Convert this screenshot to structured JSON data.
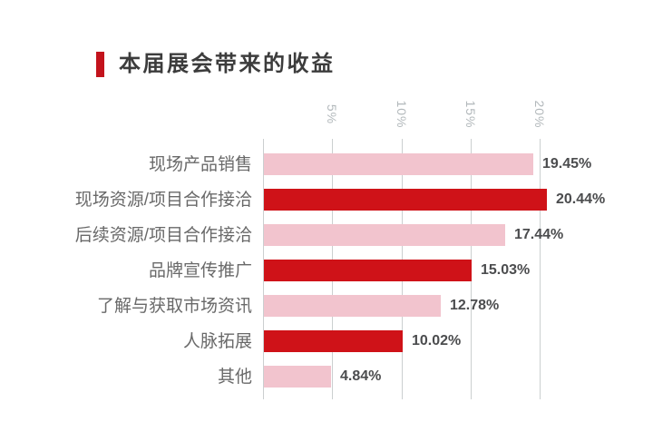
{
  "header": {
    "title": "本届展会带来的收益"
  },
  "colors": {
    "accent_red": "#c3131c",
    "bar_dark_red": "#cf1218",
    "bar_pink": "#f2c4ce",
    "gridline": "#cbcfd0",
    "tick_label": "#b2b8bb",
    "value_label": "#4b4c4e",
    "category_label": "#696969",
    "title_text": "#3c3c3c",
    "background": "#ffffff"
  },
  "chart_data": {
    "type": "bar",
    "orientation": "horizontal",
    "title": "本届展会带来的收益",
    "categories": [
      "现场产品销售",
      "现场资源/项目合作接洽",
      "后续资源/项目合作接洽",
      "品牌宣传推广",
      "了解与获取市场资讯",
      "人脉拓展",
      "其他"
    ],
    "values": [
      19.45,
      20.44,
      17.44,
      15.03,
      12.78,
      10.02,
      4.84
    ],
    "value_labels": [
      "19.45%",
      "20.44%",
      "17.44%",
      "15.03%",
      "12.78%",
      "10.02%",
      "4.84%"
    ],
    "bar_color_keys": [
      "bar_pink",
      "bar_dark_red",
      "bar_pink",
      "bar_dark_red",
      "bar_pink",
      "bar_dark_red",
      "bar_pink"
    ],
    "x_tick_labels": [
      "5%",
      "10%",
      "15%",
      "20%"
    ],
    "x_tick_values": [
      5,
      10,
      15,
      20
    ],
    "xlim": [
      0,
      20
    ],
    "x_axis_position": "top",
    "x_tick_label_rotation_deg": 90,
    "grid": "vertical",
    "value_label_position": "right-of-bar",
    "legend": "none"
  }
}
